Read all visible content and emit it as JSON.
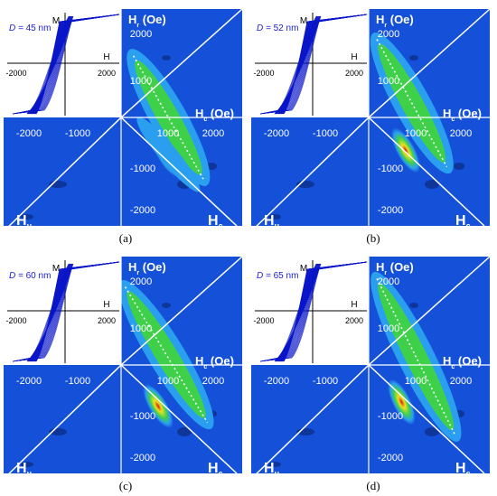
{
  "colors": {
    "field": "#1450d8",
    "deep": "#0b2a80",
    "mid": "#2a9ff0",
    "green": "#3fd04a",
    "yellow": "#f0e020",
    "red": "#d81818",
    "curve": "#0a16c8"
  },
  "axes": {
    "M": "M",
    "H": "H",
    "Hr_label": "H (Oe)",
    "Hr_sub": "r",
    "Hc_label": "H (Oe)",
    "Hc_sub": "c",
    "Hu": "H",
    "Hu_sub": "u",
    "Hc_corner": "H",
    "Hc_corner_sub": "c",
    "ticks_pos": [
      "1000",
      "2000"
    ],
    "ticks_neg": [
      "-2000",
      "-1000"
    ],
    "loop_ticks": [
      "-2000",
      "2000"
    ]
  },
  "panels": [
    {
      "id": "a",
      "label": "(a)",
      "D_prefix": "D = ",
      "D_value": "45 nm"
    },
    {
      "id": "b",
      "label": "(b)",
      "D_prefix": "D = ",
      "D_value": "52 nm"
    },
    {
      "id": "c",
      "label": "(c)",
      "D_prefix": "D = ",
      "D_value": "60 nm"
    },
    {
      "id": "d",
      "label": "(d)",
      "D_prefix": "D = ",
      "D_value": "65 nm"
    }
  ],
  "chart_data": [
    {
      "type": "heatmap",
      "panel": "a",
      "sample_diameter_nm": 45,
      "xlabel": "Hc (Oe)",
      "ylabel": "Hr (Oe)",
      "corner_axes": [
        "Hu",
        "Hc"
      ],
      "ridge_hc_hu": [
        [
          400,
          0
        ],
        [
          1900,
          -1800
        ]
      ],
      "ridge_hc": [
        [
          300,
          1500
        ],
        [
          2000,
          -1500
        ]
      ],
      "peak_hc": [
        1100,
        -900
      ]
    },
    {
      "type": "heatmap",
      "panel": "b",
      "sample_diameter_nm": 52,
      "xlabel": "Hc (Oe)",
      "ylabel": "Hr (Oe)",
      "corner_axes": [
        "Hu",
        "Hc"
      ],
      "ridge_hc": [
        [
          200,
          1900
        ],
        [
          1900,
          -1200
        ]
      ],
      "peak_hc": [
        900,
        -800
      ]
    },
    {
      "type": "heatmap",
      "panel": "c",
      "sample_diameter_nm": 60,
      "xlabel": "Hc (Oe)",
      "ylabel": "Hr (Oe)",
      "corner_axes": [
        "Hu",
        "Hc"
      ],
      "ridge_hc": [
        [
          100,
          1900
        ],
        [
          2100,
          -1400
        ]
      ],
      "peak_hc": [
        900,
        -1000
      ]
    },
    {
      "type": "heatmap",
      "panel": "d",
      "sample_diameter_nm": 65,
      "xlabel": "Hc (Oe)",
      "ylabel": "Hr (Oe)",
      "corner_axes": [
        "Hu",
        "Hc"
      ],
      "ridge_hc": [
        [
          200,
          2100
        ],
        [
          2100,
          -1700
        ]
      ],
      "peak_hc": [
        800,
        -900
      ]
    }
  ]
}
